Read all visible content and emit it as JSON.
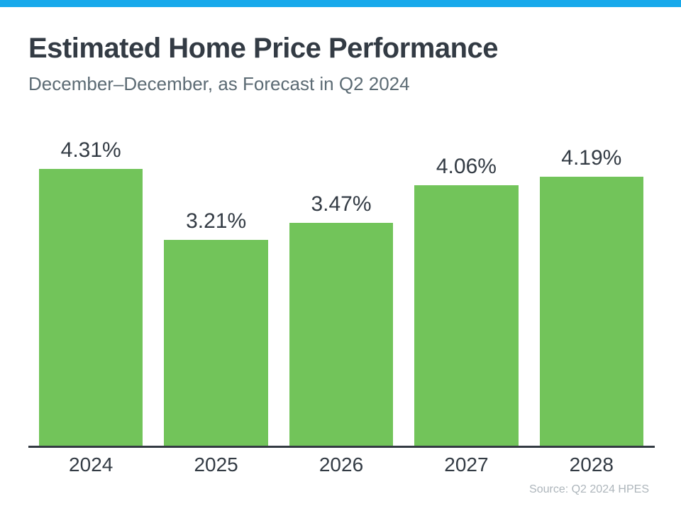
{
  "page": {
    "title": "Estimated Home Price Performance",
    "subtitle": "December–December, as Forecast in Q2 2024",
    "source": "Source: Q2 2024 HPES"
  },
  "colors": {
    "accent_bar": "#18A9EB",
    "bar_fill": "#72C45A",
    "axis_line": "#333A42",
    "title_text": "#333B44",
    "subtitle_text": "#5C6B74",
    "label_text": "#333B44",
    "source_text": "#AEB6BC"
  },
  "chart_data": {
    "type": "bar",
    "title": "Estimated Home Price Performance",
    "subtitle": "December–December, as Forecast in Q2 2024",
    "categories": [
      "2024",
      "2025",
      "2026",
      "2027",
      "2028"
    ],
    "values": [
      4.31,
      3.21,
      3.47,
      4.06,
      4.19
    ],
    "value_labels": [
      "4.31%",
      "3.21%",
      "3.47%",
      "4.06%",
      "4.19%"
    ],
    "value_suffix": "%",
    "xlabel": "",
    "ylabel": "",
    "ylim": [
      0,
      4.31
    ],
    "grid": false,
    "y_axis_shown": false,
    "legend": "none",
    "source": "Source: Q2 2024 HPES"
  }
}
